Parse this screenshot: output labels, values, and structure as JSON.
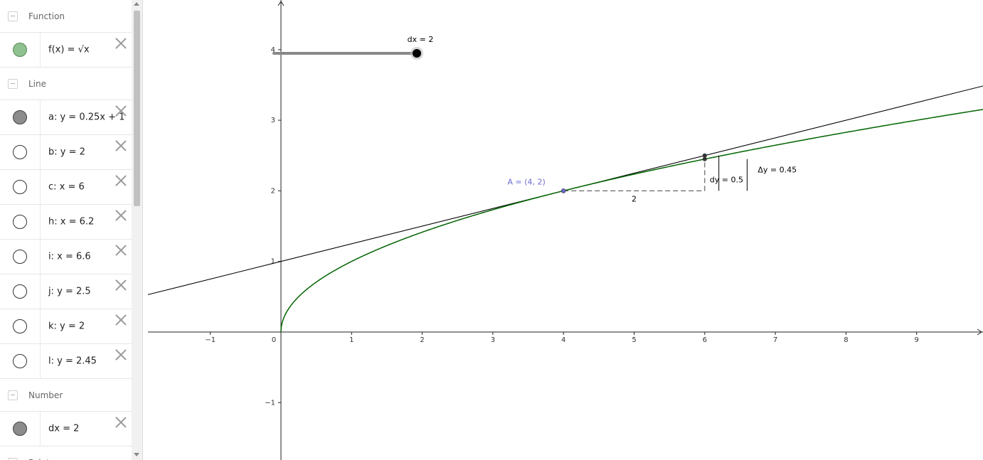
{
  "algebra": {
    "sections": [
      {
        "title": "Function",
        "items": [
          {
            "label": "f(x) = √x",
            "marble": "green"
          }
        ]
      },
      {
        "title": "Line",
        "items": [
          {
            "label": "a: y = 0.25x + 1",
            "marble": "gray"
          },
          {
            "label": "b: y = 2",
            "marble": "empty"
          },
          {
            "label": "c: x = 6",
            "marble": "empty"
          },
          {
            "label": "h: x = 6.2",
            "marble": "empty"
          },
          {
            "label": "i: x = 6.6",
            "marble": "empty"
          },
          {
            "label": "j: y = 2.5",
            "marble": "empty"
          },
          {
            "label": "k: y = 2",
            "marble": "empty"
          },
          {
            "label": "l: y = 2.45",
            "marble": "empty"
          }
        ]
      },
      {
        "title": "Number",
        "items": [
          {
            "label": "dx = 2",
            "marble": "gray"
          }
        ]
      },
      {
        "title": "Point",
        "items": []
      }
    ]
  },
  "graphics": {
    "x_ticks": [
      "−1",
      "1",
      "2",
      "3",
      "4",
      "5",
      "6",
      "7",
      "8",
      "9"
    ],
    "y_ticks": [
      "−1",
      "1",
      "2",
      "3",
      "4"
    ],
    "origin_label": "0",
    "slider_label": "dx = 2",
    "point_label": "A = (4, 2)",
    "dx_label": "2",
    "dy_label": "dy = 0.5",
    "delta_y_label": "Δy = 0.45",
    "colors": {
      "function": "#006400",
      "tangent": "#000000",
      "point": "#6b6bcf",
      "slider_track": "#888888"
    }
  },
  "chart_data": {
    "type": "line",
    "xlim": [
      -1.9,
      9.9
    ],
    "ylim": [
      -1.8,
      4.6
    ],
    "series": [
      {
        "name": "f",
        "expr": "sqrt(x)"
      },
      {
        "name": "a",
        "expr": "0.25x + 1"
      }
    ],
    "points": [
      {
        "name": "A",
        "x": 4,
        "y": 2
      }
    ]
  }
}
